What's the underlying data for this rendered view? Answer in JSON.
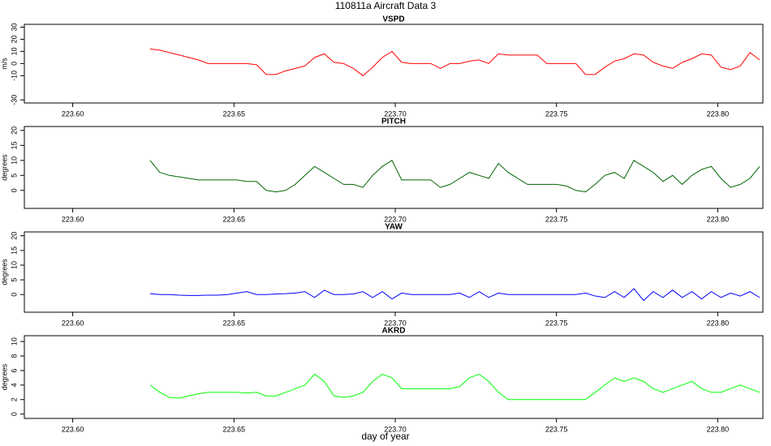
{
  "title": "110811a   Aircraft Data 3",
  "x_label": "day of year",
  "chart_data": [
    {
      "type": "line",
      "title": "VSPD",
      "y_label": "m/s",
      "color": "#ff0000",
      "x": [
        223.624,
        223.627,
        223.63,
        223.633,
        223.636,
        223.639,
        223.642,
        223.645,
        223.648,
        223.651,
        223.654,
        223.657,
        223.66,
        223.663,
        223.666,
        223.669,
        223.672,
        223.675,
        223.678,
        223.681,
        223.684,
        223.687,
        223.69,
        223.693,
        223.696,
        223.699,
        223.702,
        223.705,
        223.708,
        223.711,
        223.714,
        223.717,
        223.72,
        223.723,
        223.726,
        223.729,
        223.732,
        223.735,
        223.738,
        223.741,
        223.744,
        223.747,
        223.75,
        223.753,
        223.756,
        223.759,
        223.762,
        223.765,
        223.768,
        223.771,
        223.774,
        223.777,
        223.78,
        223.783,
        223.786,
        223.789,
        223.792,
        223.795,
        223.798,
        223.801,
        223.804,
        223.807,
        223.81,
        223.813
      ],
      "values": [
        12,
        11,
        9,
        7,
        5,
        3,
        0,
        0,
        0,
        0,
        0,
        -1,
        -9,
        -9,
        -6,
        -4,
        -2,
        5,
        8,
        1,
        0,
        -4,
        -10,
        -3,
        5,
        10,
        1,
        0,
        0,
        0,
        -4,
        0,
        0,
        2,
        3,
        0,
        8,
        7,
        7,
        7,
        7,
        0,
        0,
        0,
        0,
        -9,
        -9,
        -3,
        2,
        4,
        8,
        7,
        1,
        -2,
        -4,
        1,
        4,
        8,
        7,
        -3,
        -5,
        -2,
        9,
        3
      ],
      "xlim": [
        223.585,
        223.814
      ],
      "xticks": [
        {
          "value": 223.6,
          "label": "223.60"
        },
        {
          "value": 223.65,
          "label": "223.65"
        },
        {
          "value": 223.7,
          "label": "223.70"
        },
        {
          "value": 223.75,
          "label": "223.75"
        },
        {
          "value": 223.8,
          "label": "223.80"
        }
      ],
      "ylim": [
        -32.5,
        32.3
      ],
      "yticks": [
        -30,
        -10,
        0,
        10,
        20,
        30
      ]
    },
    {
      "type": "line",
      "title": "PITCH",
      "y_label": "degrees",
      "color": "#006400",
      "x": [
        223.624,
        223.627,
        223.63,
        223.633,
        223.636,
        223.639,
        223.642,
        223.645,
        223.648,
        223.651,
        223.654,
        223.657,
        223.66,
        223.663,
        223.666,
        223.669,
        223.672,
        223.675,
        223.678,
        223.681,
        223.684,
        223.687,
        223.69,
        223.693,
        223.696,
        223.699,
        223.702,
        223.705,
        223.708,
        223.711,
        223.714,
        223.717,
        223.72,
        223.723,
        223.726,
        223.729,
        223.732,
        223.735,
        223.738,
        223.741,
        223.744,
        223.747,
        223.75,
        223.753,
        223.756,
        223.759,
        223.762,
        223.765,
        223.768,
        223.771,
        223.774,
        223.777,
        223.78,
        223.783,
        223.786,
        223.789,
        223.792,
        223.795,
        223.798,
        223.801,
        223.804,
        223.807,
        223.81,
        223.813
      ],
      "values": [
        10,
        6,
        5,
        4.5,
        4,
        3.5,
        3.5,
        3.5,
        3.5,
        3.5,
        3,
        3,
        0,
        -0.5,
        0,
        2,
        5,
        8,
        6,
        4,
        2,
        2,
        1,
        5,
        8,
        10,
        3.5,
        3.5,
        3.5,
        3.5,
        1,
        2,
        4,
        6,
        5,
        4,
        9,
        6,
        4,
        2,
        2,
        2,
        2,
        1.5,
        0,
        -0.5,
        2,
        5,
        6,
        4,
        10,
        8,
        6,
        3,
        5,
        2,
        5,
        7,
        8,
        4,
        1,
        2,
        4,
        8
      ],
      "xlim": [
        223.585,
        223.814
      ],
      "xticks": [
        {
          "value": 223.6,
          "label": "223.60"
        },
        {
          "value": 223.65,
          "label": "223.65"
        },
        {
          "value": 223.7,
          "label": "223.70"
        },
        {
          "value": 223.75,
          "label": "223.75"
        },
        {
          "value": 223.8,
          "label": "223.80"
        }
      ],
      "ylim": [
        -6,
        21.3
      ],
      "yticks": [
        0,
        5,
        10,
        15,
        20
      ]
    },
    {
      "type": "line",
      "title": "YAW",
      "y_label": "degrees",
      "color": "#0000ff",
      "x": [
        223.624,
        223.627,
        223.63,
        223.633,
        223.636,
        223.639,
        223.642,
        223.645,
        223.648,
        223.651,
        223.654,
        223.657,
        223.66,
        223.663,
        223.666,
        223.669,
        223.672,
        223.675,
        223.678,
        223.681,
        223.684,
        223.687,
        223.69,
        223.693,
        223.696,
        223.699,
        223.702,
        223.705,
        223.708,
        223.711,
        223.714,
        223.717,
        223.72,
        223.723,
        223.726,
        223.729,
        223.732,
        223.735,
        223.738,
        223.741,
        223.744,
        223.747,
        223.75,
        223.753,
        223.756,
        223.759,
        223.762,
        223.765,
        223.768,
        223.771,
        223.774,
        223.777,
        223.78,
        223.783,
        223.786,
        223.789,
        223.792,
        223.795,
        223.798,
        223.801,
        223.804,
        223.807,
        223.81,
        223.813
      ],
      "values": [
        0.3,
        0,
        0,
        -0.2,
        -0.3,
        -0.3,
        -0.2,
        -0.2,
        0,
        0.5,
        1,
        0,
        0,
        0.2,
        0.3,
        0.5,
        1,
        -1,
        1.5,
        0,
        0,
        0.2,
        1,
        -1,
        1,
        -1.5,
        0.5,
        0,
        0,
        0,
        0,
        0,
        0.5,
        -1,
        1,
        -1,
        0.5,
        0,
        0,
        0,
        0,
        0,
        0,
        0,
        0,
        0.5,
        -0.5,
        -1,
        1,
        -1,
        2,
        -2,
        1,
        -1,
        1.5,
        -1,
        1,
        -1.5,
        1,
        -1,
        0.5,
        -0.5,
        1,
        -1
      ],
      "xlim": [
        223.585,
        223.814
      ],
      "xticks": [
        {
          "value": 223.6,
          "label": "223.60"
        },
        {
          "value": 223.65,
          "label": "223.65"
        },
        {
          "value": 223.7,
          "label": "223.70"
        },
        {
          "value": 223.75,
          "label": "223.75"
        },
        {
          "value": 223.8,
          "label": "223.80"
        }
      ],
      "ylim": [
        -6,
        21.3
      ],
      "yticks": [
        0,
        5,
        10,
        15,
        20
      ]
    },
    {
      "type": "line",
      "title": "AKRD",
      "y_label": "degrees",
      "color": "#00ff00",
      "x": [
        223.624,
        223.627,
        223.63,
        223.633,
        223.636,
        223.639,
        223.642,
        223.645,
        223.648,
        223.651,
        223.654,
        223.657,
        223.66,
        223.663,
        223.666,
        223.669,
        223.672,
        223.675,
        223.678,
        223.681,
        223.684,
        223.687,
        223.69,
        223.693,
        223.696,
        223.699,
        223.702,
        223.705,
        223.708,
        223.711,
        223.714,
        223.717,
        223.72,
        223.723,
        223.726,
        223.729,
        223.732,
        223.735,
        223.738,
        223.741,
        223.744,
        223.747,
        223.75,
        223.753,
        223.756,
        223.759,
        223.762,
        223.765,
        223.768,
        223.771,
        223.774,
        223.777,
        223.78,
        223.783,
        223.786,
        223.789,
        223.792,
        223.795,
        223.798,
        223.801,
        223.804,
        223.807,
        223.81,
        223.813
      ],
      "values": [
        4,
        3,
        2.3,
        2.2,
        2.5,
        2.8,
        3,
        3,
        3,
        3,
        2.9,
        3,
        2.5,
        2.5,
        3,
        3.5,
        4,
        5.5,
        4.5,
        2.5,
        2.3,
        2.5,
        3,
        4.5,
        5.5,
        5,
        3.5,
        3.5,
        3.5,
        3.5,
        3.5,
        3.5,
        3.8,
        5,
        5.5,
        4.5,
        3,
        2,
        2,
        2,
        2,
        2,
        2,
        2,
        2,
        2,
        3,
        4,
        5,
        4.5,
        5,
        4.5,
        3.5,
        3,
        3.5,
        4,
        4.5,
        3.5,
        3,
        3,
        3.5,
        4,
        3.5,
        3
      ],
      "xlim": [
        223.585,
        223.814
      ],
      "xticks": [
        {
          "value": 223.6,
          "label": "223.60"
        },
        {
          "value": 223.65,
          "label": "223.65"
        },
        {
          "value": 223.7,
          "label": "223.70"
        },
        {
          "value": 223.75,
          "label": "223.75"
        },
        {
          "value": 223.8,
          "label": "223.80"
        }
      ],
      "ylim": [
        -0.6,
        10.8
      ],
      "yticks": [
        0,
        2,
        4,
        6,
        8,
        10
      ]
    }
  ]
}
